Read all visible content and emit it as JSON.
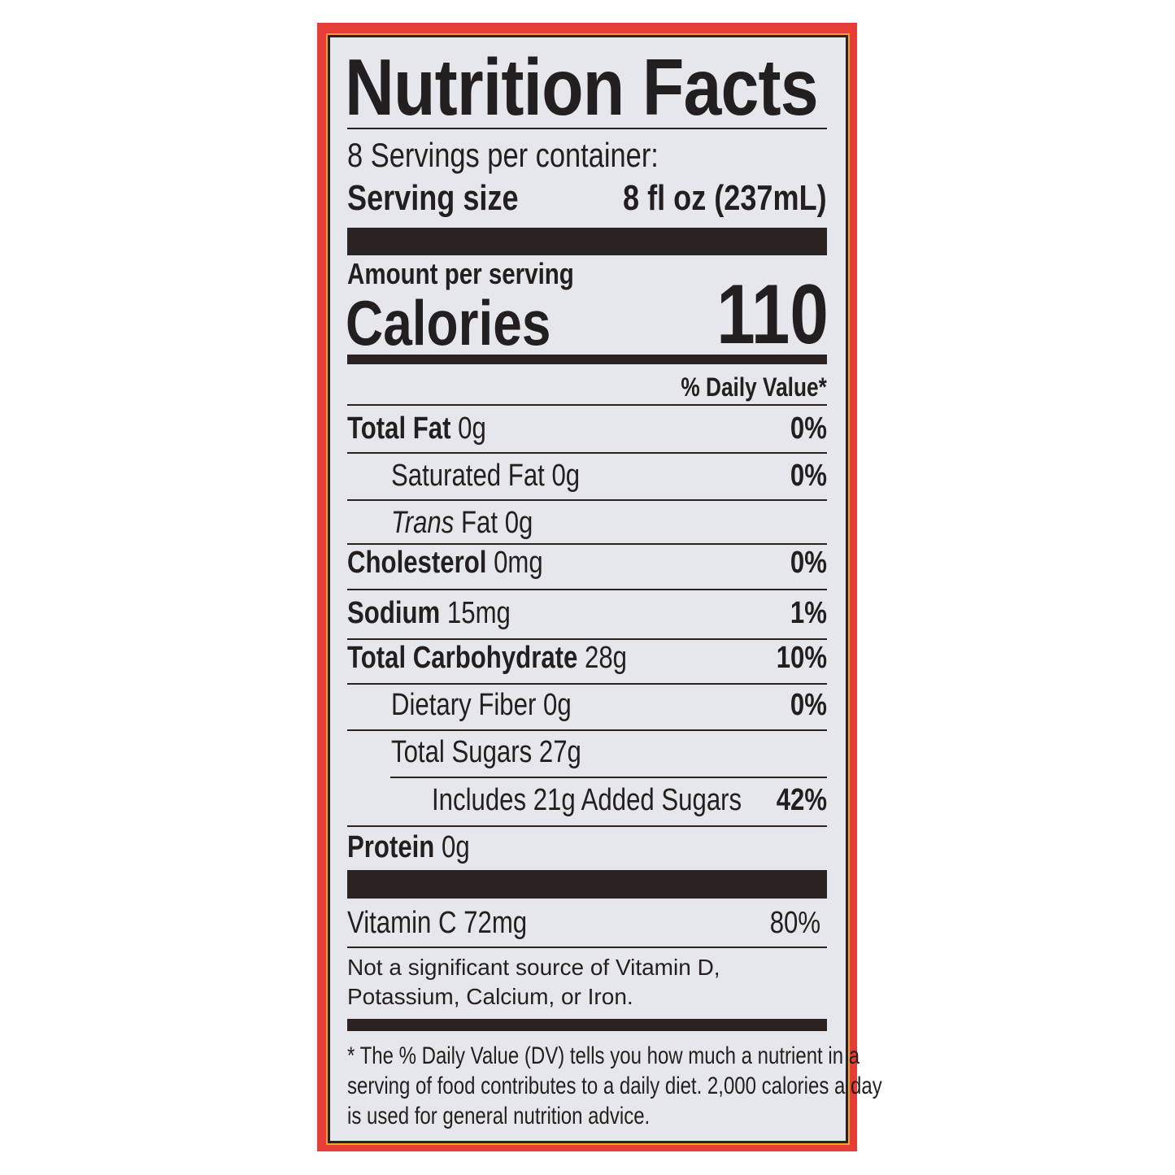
{
  "title": "Nutrition Facts",
  "servings_per_container": "8 Servings per container:",
  "serving_size_label": "Serving size",
  "serving_size_value": "8 fl oz (237mL)",
  "amount_per_serving": "Amount per serving",
  "calories_label": "Calories",
  "calories_value": "110",
  "daily_value_header": "% Daily Value*",
  "nutrients": [
    {
      "name": "Total Fat",
      "amount": "0g",
      "dv": "0%"
    },
    {
      "name": "Saturated Fat",
      "amount": "0g",
      "dv": "0%"
    },
    {
      "name": "Trans",
      "name_suffix": "Fat",
      "amount": "0g",
      "dv": ""
    },
    {
      "name": "Cholesterol",
      "amount": "0mg",
      "dv": "0%"
    },
    {
      "name": "Sodium",
      "amount": "15mg",
      "dv": "1%"
    },
    {
      "name": "Total Carbohydrate",
      "amount": "28g",
      "dv": "10%"
    },
    {
      "name": "Dietary Fiber",
      "amount": "0g",
      "dv": "0%"
    },
    {
      "name": "Total Sugars",
      "amount": "27g",
      "dv": ""
    },
    {
      "name": "Includes 21g Added Sugars",
      "amount": "",
      "dv": "42%"
    },
    {
      "name": "Protein",
      "amount": "0g",
      "dv": ""
    }
  ],
  "vitamins": [
    {
      "name": "Vitamin C",
      "amount": "72mg",
      "dv": "80%"
    }
  ],
  "not_significant": [
    "Not a significant source of Vitamin D,",
    "Potassium, Calcium, or Iron."
  ],
  "footnote": [
    "* The % Daily Value (DV) tells you how much a nutrient in a",
    "serving of food contributes to a daily diet. 2,000 calories a day",
    "is used for general nutrition advice."
  ],
  "colors": {
    "border": "#e63c38",
    "label_bg": "#e6e7ec",
    "ink": "#231f20"
  }
}
